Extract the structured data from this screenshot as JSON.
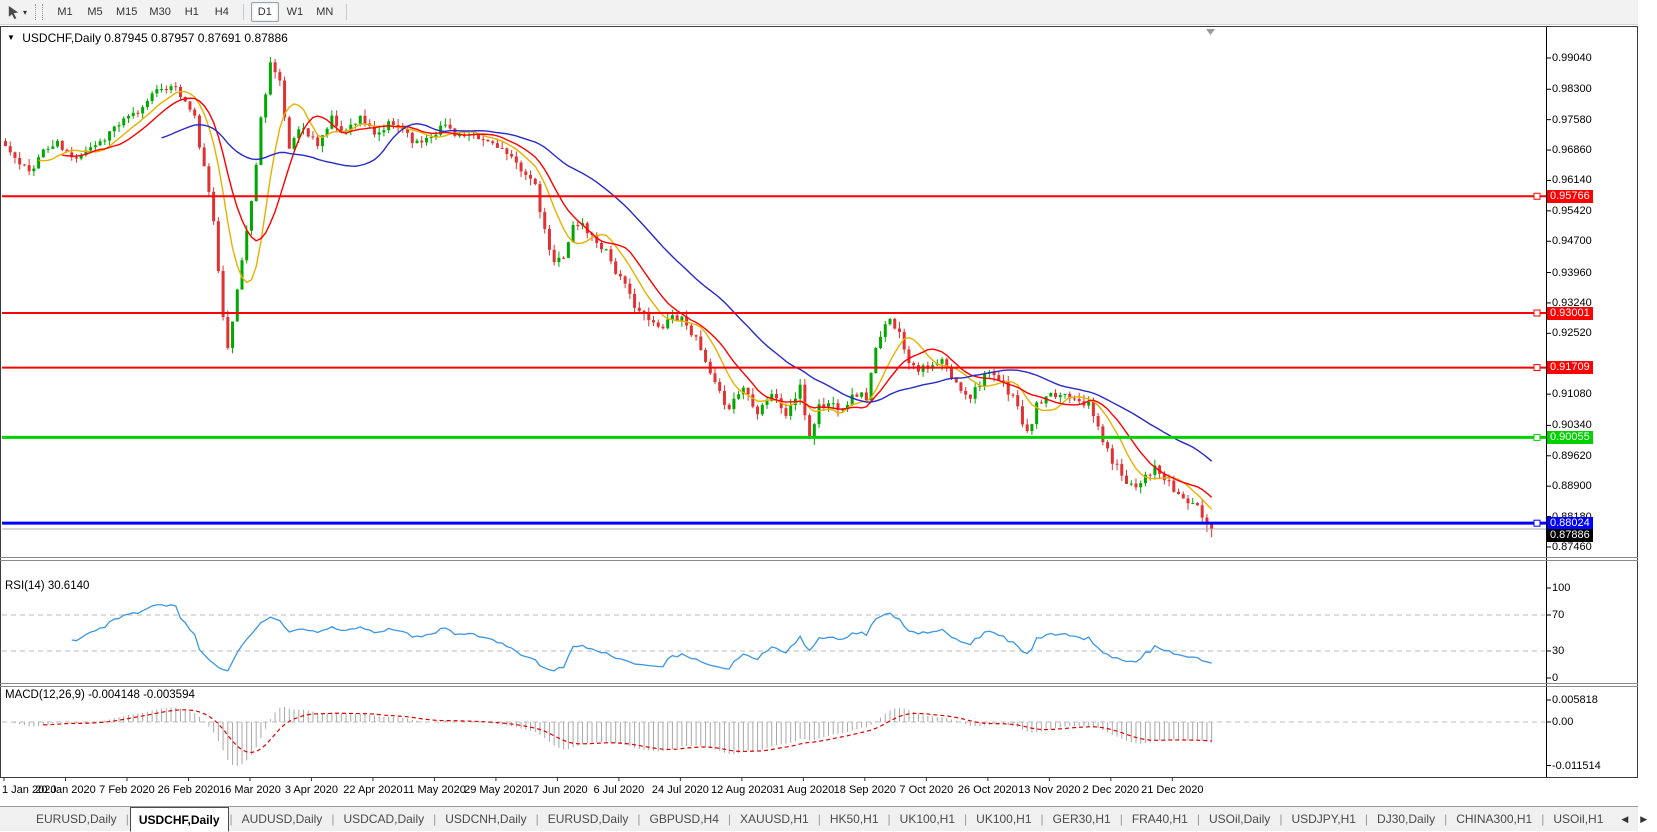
{
  "icons": {
    "dropdown_caret": "▾",
    "chart_dropdown": "▼",
    "tab_scroll_left": "◀",
    "tab_scroll_right": "▶"
  },
  "toolbar": {
    "timeframes": [
      "M1",
      "M5",
      "M15",
      "M30",
      "H1",
      "H4",
      "D1",
      "W1",
      "MN"
    ],
    "selected_timeframe": "D1"
  },
  "chart": {
    "title": "USDCHF,Daily",
    "ohlc_line": "0.87945 0.87957 0.87691 0.87886",
    "price_axis_ticks": [
      "0.99040",
      "0.98300",
      "0.97580",
      "0.96860",
      "0.96140",
      "0.95420",
      "0.94700",
      "0.93960",
      "0.93240",
      "0.92520",
      "0.91080",
      "0.90340",
      "0.89620",
      "0.88900",
      "0.88180",
      "0.87460"
    ],
    "hlines": [
      {
        "price": 0.95766,
        "label": "0.95766",
        "color": "#FF0000",
        "width": 2
      },
      {
        "price": 0.93001,
        "label": "0.93001",
        "color": "#FF0000",
        "width": 2
      },
      {
        "price": 0.91709,
        "label": "0.91709",
        "color": "#FF0000",
        "width": 2
      },
      {
        "price": 0.90055,
        "label": "0.90055",
        "color": "#00D200",
        "width": 3
      },
      {
        "price": 0.88024,
        "label": "0.88024",
        "color": "#0000FF",
        "width": 3
      }
    ],
    "bid_line": {
      "price": 0.87886,
      "label": "0.87886",
      "color": "#000000"
    },
    "date_axis": [
      "1 Jan 2020",
      "20 Jan 2020",
      "7 Feb 2020",
      "26 Feb 2020",
      "16 Mar 2020",
      "3 Apr 2020",
      "22 Apr 2020",
      "11 May 2020",
      "29 May 2020",
      "17 Jun 2020",
      "6 Jul 2020",
      "24 Jul 2020",
      "12 Aug 2020",
      "31 Aug 2020",
      "18 Sep 2020",
      "7 Oct 2020",
      "26 Oct 2020",
      "13 Nov 2020",
      "2 Dec 2020",
      "21 Dec 2020"
    ]
  },
  "rsi": {
    "label": "RSI(14) 30.6140",
    "axis": [
      "100",
      "70",
      "30",
      "0"
    ],
    "levels": [
      70,
      30
    ],
    "color": "#3B97E3"
  },
  "macd": {
    "label": "MACD(12,26,9) -0.004148 -0.003594",
    "axis": [
      "0.005818",
      "0.00",
      "-0.011514"
    ],
    "hist_color": "#A8A8A8",
    "signal_color": "#E00000"
  },
  "tabs": {
    "items": [
      "EURUSD,Daily",
      "USDCHF,Daily",
      "AUDUSD,Daily",
      "USDCAD,Daily",
      "USDCNH,Daily",
      "EURUSD,Daily",
      "GBPUSD,H4",
      "XAUUSD,H1",
      "HK50,H1",
      "UK100,H1",
      "UK100,H1",
      "GER30,H1",
      "FRA40,H1",
      "USOil,Daily",
      "USDJPY,H1",
      "DJ30,Daily",
      "CHINA300,H1",
      "USOil,H1"
    ],
    "active_index": 1
  },
  "chart_data": {
    "type": "candlestick",
    "symbol": "USDCHF",
    "timeframe": "Daily",
    "bars": 256,
    "price_range": [
      0.8746,
      0.994
    ],
    "ohlc_last": {
      "open": 0.87945,
      "high": 0.87957,
      "low": 0.87691,
      "close": 0.87886
    },
    "up_color": "#00A800",
    "down_color": "#E03232",
    "ma": [
      {
        "period": 8,
        "color": "#E8B000"
      },
      {
        "period": 13,
        "color": "#FF0000"
      },
      {
        "period": 34,
        "color": "#2929C8"
      }
    ],
    "rsi_period": 14,
    "rsi_last": 30.614,
    "macd": {
      "fast": 12,
      "slow": 26,
      "signal": 9,
      "last_main": -0.004148,
      "last_signal": -0.003594
    },
    "close_path_anchors": [
      [
        0,
        0.9695
      ],
      [
        3,
        0.965
      ],
      [
        5,
        0.9635
      ],
      [
        8,
        0.9685
      ],
      [
        11,
        0.97
      ],
      [
        14,
        0.9665
      ],
      [
        17,
        0.969
      ],
      [
        20,
        0.9705
      ],
      [
        23,
        0.974
      ],
      [
        26,
        0.976
      ],
      [
        29,
        0.9785
      ],
      [
        31,
        0.983
      ],
      [
        33,
        0.982
      ],
      [
        35,
        0.9845
      ],
      [
        38,
        0.98
      ],
      [
        40,
        0.976
      ],
      [
        42,
        0.964
      ],
      [
        44,
        0.952
      ],
      [
        46,
        0.93
      ],
      [
        47,
        0.921
      ],
      [
        48,
        0.928
      ],
      [
        50,
        0.943
      ],
      [
        52,
        0.956
      ],
      [
        54,
        0.976
      ],
      [
        56,
        0.9895
      ],
      [
        58,
        0.984
      ],
      [
        60,
        0.969
      ],
      [
        62,
        0.9745
      ],
      [
        64,
        0.972
      ],
      [
        66,
        0.97
      ],
      [
        69,
        0.976
      ],
      [
        72,
        0.973
      ],
      [
        75,
        0.977
      ],
      [
        78,
        0.9715
      ],
      [
        81,
        0.9745
      ],
      [
        84,
        0.974
      ],
      [
        87,
        0.97
      ],
      [
        90,
        0.9725
      ],
      [
        93,
        0.9745
      ],
      [
        96,
        0.972
      ],
      [
        99,
        0.9712
      ],
      [
        102,
        0.9705
      ],
      [
        104,
        0.97
      ],
      [
        107,
        0.966
      ],
      [
        110,
        0.9635
      ],
      [
        112,
        0.9595
      ],
      [
        114,
        0.949
      ],
      [
        116,
        0.9415
      ],
      [
        118,
        0.944
      ],
      [
        120,
        0.9505
      ],
      [
        122,
        0.951
      ],
      [
        124,
        0.948
      ],
      [
        127,
        0.945
      ],
      [
        129,
        0.94
      ],
      [
        132,
        0.934
      ],
      [
        135,
        0.929
      ],
      [
        138,
        0.9265
      ],
      [
        141,
        0.9295
      ],
      [
        144,
        0.928
      ],
      [
        147,
        0.921
      ],
      [
        149,
        0.915
      ],
      [
        151,
        0.9105
      ],
      [
        153,
        0.908
      ],
      [
        156,
        0.9125
      ],
      [
        159,
        0.907
      ],
      [
        162,
        0.911
      ],
      [
        165,
        0.906
      ],
      [
        168,
        0.912
      ],
      [
        170,
        0.9005
      ],
      [
        172,
        0.908
      ],
      [
        174,
        0.9085
      ],
      [
        177,
        0.908
      ],
      [
        180,
        0.911
      ],
      [
        182,
        0.91
      ],
      [
        184,
        0.921
      ],
      [
        187,
        0.9295
      ],
      [
        189,
        0.925
      ],
      [
        191,
        0.919
      ],
      [
        193,
        0.917
      ],
      [
        195,
        0.9165
      ],
      [
        198,
        0.9185
      ],
      [
        201,
        0.913
      ],
      [
        204,
        0.9105
      ],
      [
        207,
        0.9155
      ],
      [
        210,
        0.914
      ],
      [
        213,
        0.9105
      ],
      [
        216,
        0.901
      ],
      [
        218,
        0.908
      ],
      [
        221,
        0.91
      ],
      [
        224,
        0.911
      ],
      [
        227,
        0.91
      ],
      [
        229,
        0.908
      ],
      [
        231,
        0.903
      ],
      [
        233,
        0.897
      ],
      [
        235,
        0.8935
      ],
      [
        237,
        0.8905
      ],
      [
        239,
        0.889
      ],
      [
        241,
        0.892
      ],
      [
        243,
        0.893
      ],
      [
        245,
        0.8905
      ],
      [
        247,
        0.888
      ],
      [
        249,
        0.886
      ],
      [
        251,
        0.885
      ],
      [
        253,
        0.882
      ],
      [
        255,
        0.8789
      ]
    ]
  }
}
